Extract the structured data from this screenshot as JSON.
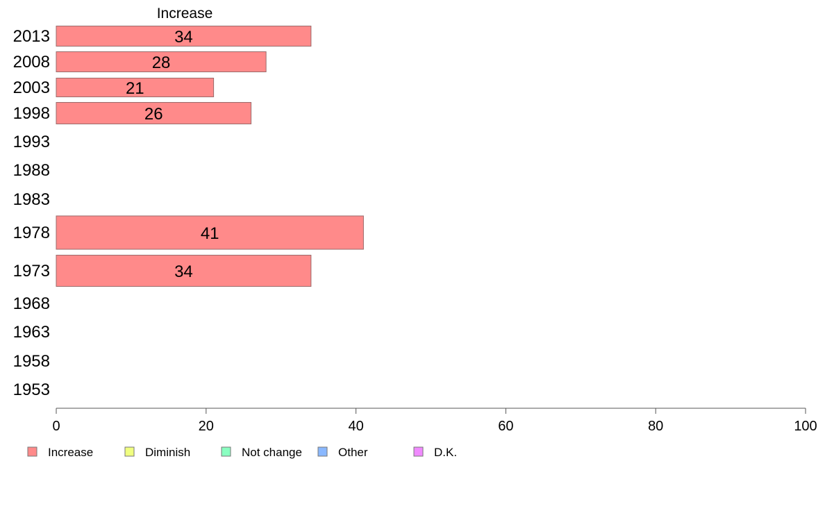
{
  "chart_data": {
    "type": "bar",
    "orientation": "horizontal",
    "title": "Increase",
    "categories": [
      "2013",
      "2008",
      "2003",
      "1998",
      "1993",
      "1988",
      "1983",
      "1978",
      "1973",
      "1968",
      "1963",
      "1958",
      "1953"
    ],
    "series": [
      {
        "name": "Increase",
        "color": "#ff8a8a",
        "values": [
          34,
          28,
          21,
          26,
          null,
          null,
          null,
          41,
          34,
          null,
          null,
          null,
          null
        ],
        "labels": [
          "34",
          "28",
          "21",
          "26",
          "",
          "",
          "",
          "41",
          "34",
          "",
          "",
          "",
          ""
        ]
      }
    ],
    "xlim": [
      0,
      100
    ],
    "xticks": [
      "0",
      "20",
      "40",
      "60",
      "80",
      "100"
    ],
    "xtick_values": [
      0,
      20,
      40,
      60,
      80,
      100
    ],
    "legend": [
      {
        "label": "Increase",
        "color": "#ff8a8a"
      },
      {
        "label": "Diminish",
        "color": "#f0ff80"
      },
      {
        "label": "Not change",
        "color": "#8affc1"
      },
      {
        "label": "Other",
        "color": "#8ab8ff"
      },
      {
        "label": "D.K.",
        "color": "#f08aff"
      }
    ],
    "legend_position": "bottom",
    "grid": false
  }
}
